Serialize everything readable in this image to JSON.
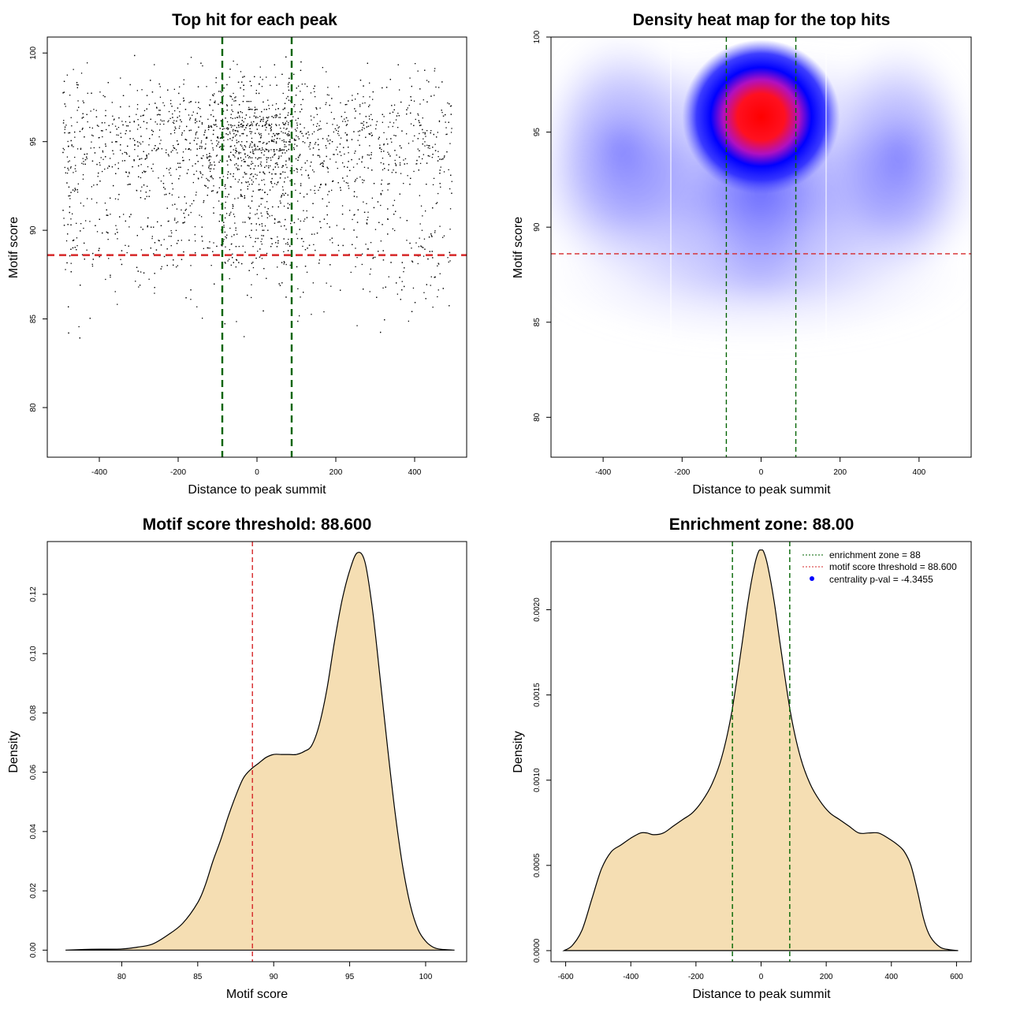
{
  "chart_data": [
    {
      "type": "scatter",
      "title": "Top hit for each peak",
      "xlabel": "Distance to peak summit",
      "ylabel": "Motif score",
      "xlim": [
        -532,
        532
      ],
      "ylim": [
        77.2,
        100.9
      ],
      "xticks": [
        -400,
        -200,
        0,
        200,
        400
      ],
      "yticks": [
        80,
        85,
        90,
        95,
        100
      ],
      "hlines": [
        {
          "y": 88.6,
          "color": "#d62728"
        }
      ],
      "vlines": [
        {
          "x": -88,
          "color": "#006400"
        },
        {
          "x": 88,
          "color": "#006400"
        }
      ],
      "point_color": "#000000",
      "point_count_approx": 3300,
      "note_points": "dense central cluster near distance 0, score 93-98"
    },
    {
      "type": "heatmap",
      "title": "Density heat map for the top hits",
      "xlabel": "Distance to peak summit",
      "ylabel": "Motif score",
      "xlim": [
        -532,
        532
      ],
      "ylim": [
        77.9,
        100.0
      ],
      "xticks": [
        -400,
        -200,
        0,
        200,
        400
      ],
      "yticks": [
        80,
        85,
        90,
        95,
        100
      ],
      "hlines": [
        {
          "y": 88.6,
          "color": "#d62728"
        }
      ],
      "vlines": [
        {
          "x": -88,
          "color": "#006400"
        },
        {
          "x": 88,
          "color": "#006400"
        }
      ],
      "peak": {
        "x": 0,
        "y": 95.8
      },
      "colors": [
        "#ffffff",
        "#0000ff",
        "#ff0000"
      ]
    },
    {
      "type": "area",
      "title": "Motif score threshold: 88.600",
      "xlabel": "Motif score",
      "ylabel": "Density",
      "xlim": [
        75.1,
        102.7
      ],
      "ylim": [
        -0.0039,
        0.1378
      ],
      "xticks": [
        80,
        85,
        90,
        95,
        100
      ],
      "yticks": [
        0.0,
        0.02,
        0.04,
        0.06,
        0.08,
        0.1,
        0.12
      ],
      "ytick_labels": [
        "0.00",
        "0.02",
        "0.04",
        "0.06",
        "0.08",
        "0.10",
        "0.12"
      ],
      "vlines": [
        {
          "x": 88.6,
          "color": "#d62728"
        }
      ],
      "fill": "#f5deb3",
      "x": [
        76.3,
        78,
        80,
        81,
        82,
        83,
        84,
        85,
        85.5,
        86,
        86.5,
        87,
        87.5,
        88,
        88.5,
        89,
        89.5,
        90,
        90.5,
        91,
        91.5,
        92,
        92.5,
        93,
        93.5,
        94,
        94.5,
        95,
        95.5,
        96,
        96.5,
        97,
        97.5,
        98,
        98.5,
        99,
        99.5,
        100,
        100.5,
        101,
        101.9
      ],
      "y": [
        0.0,
        0.0003,
        0.0004,
        0.001,
        0.002,
        0.005,
        0.009,
        0.016,
        0.022,
        0.03,
        0.037,
        0.045,
        0.052,
        0.058,
        0.061,
        0.063,
        0.065,
        0.066,
        0.066,
        0.066,
        0.066,
        0.067,
        0.069,
        0.076,
        0.088,
        0.104,
        0.118,
        0.128,
        0.134,
        0.131,
        0.115,
        0.092,
        0.068,
        0.046,
        0.028,
        0.015,
        0.007,
        0.003,
        0.001,
        0.0003,
        0.0
      ]
    },
    {
      "type": "area",
      "title": "Enrichment zone: 88.00",
      "xlabel": "Distance to peak summit",
      "ylabel": "Density",
      "xlim": [
        -645,
        645
      ],
      "ylim": [
        -6.5e-05,
        0.0024
      ],
      "xticks": [
        -600,
        -400,
        -200,
        0,
        200,
        400,
        600
      ],
      "yticks": [
        0.0,
        0.0005,
        0.001,
        0.0015,
        0.002
      ],
      "ytick_labels": [
        "0.0000",
        "0.0005",
        "0.0010",
        "0.0015",
        "0.0020"
      ],
      "vlines": [
        {
          "x": -88,
          "color": "#006400"
        },
        {
          "x": 88,
          "color": "#006400"
        }
      ],
      "fill": "#f5deb3",
      "x": [
        -605,
        -580,
        -550,
        -520,
        -490,
        -460,
        -430,
        -400,
        -370,
        -350,
        -330,
        -300,
        -270,
        -240,
        -210,
        -180,
        -150,
        -120,
        -90,
        -60,
        -40,
        -20,
        -8,
        0,
        8,
        20,
        40,
        60,
        90,
        120,
        150,
        180,
        210,
        240,
        270,
        300,
        330,
        360,
        390,
        420,
        440,
        460,
        480,
        500,
        520,
        550,
        580,
        605
      ],
      "y": [
        0.0,
        3e-05,
        0.00012,
        0.0003,
        0.00048,
        0.00058,
        0.00062,
        0.00066,
        0.00069,
        0.00069,
        0.00068,
        0.00069,
        0.00073,
        0.00077,
        0.00081,
        0.00088,
        0.00098,
        0.00114,
        0.0014,
        0.00178,
        0.00205,
        0.00226,
        0.00234,
        0.00235,
        0.00234,
        0.00226,
        0.00205,
        0.00178,
        0.0014,
        0.00114,
        0.00098,
        0.00088,
        0.00081,
        0.00077,
        0.00073,
        0.00069,
        0.00069,
        0.00069,
        0.00066,
        0.00062,
        0.00058,
        0.0005,
        0.00035,
        0.00018,
        8e-05,
        2e-05,
        5e-06,
        0.0
      ],
      "legend": {
        "placement": "top-right",
        "entries": [
          {
            "label": "enrichment zone = 88",
            "color": "#006400",
            "style": "dotted-line"
          },
          {
            "label": "motif score threshold = 88.600",
            "color": "#d62728",
            "style": "dotted-line"
          },
          {
            "label": "centrality p-val = -4.3455",
            "color": "#0000ff",
            "style": "point"
          }
        ]
      }
    }
  ]
}
